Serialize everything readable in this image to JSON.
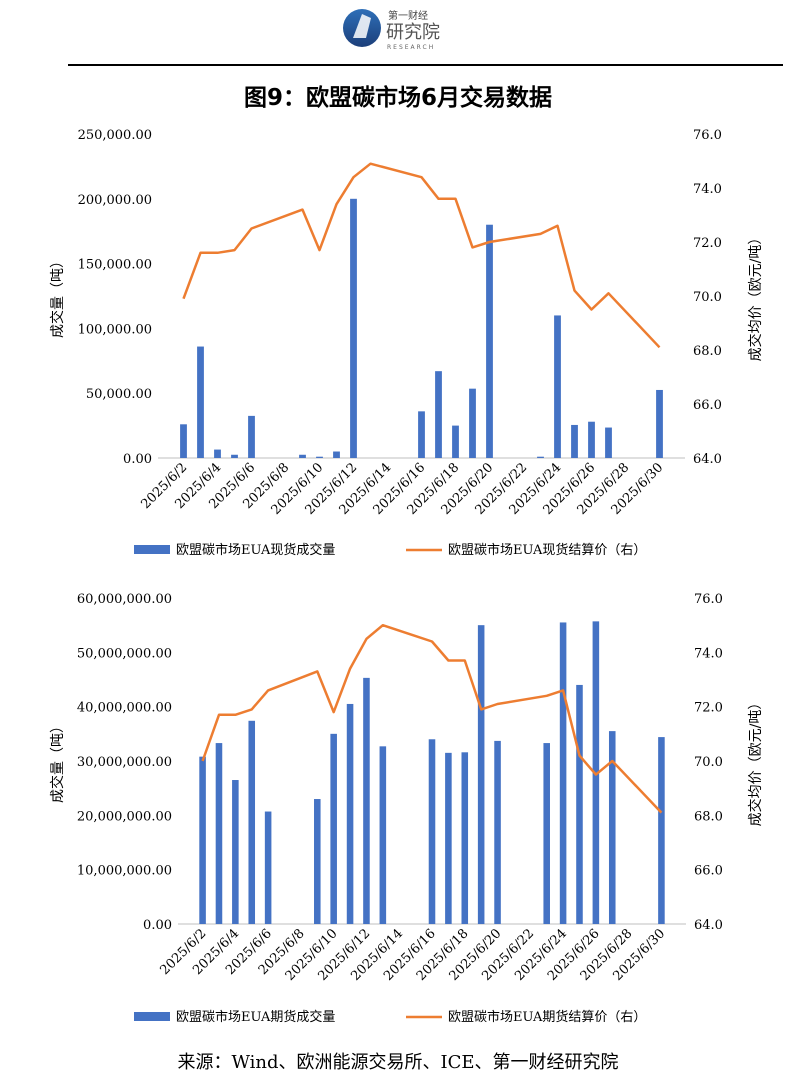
{
  "header": {
    "logo_line1": "第一财经",
    "logo_line2": "研究院",
    "logo_line3": "RESEARCH"
  },
  "title": "图9：欧盟碳市场6月交易数据",
  "source": "来源：Wind、欧洲能源交易所、ICE、第一财经研究院",
  "colors": {
    "bar": "#4472C4",
    "line": "#ED7D31"
  },
  "chart_data": [
    {
      "type": "bar+line",
      "title": "",
      "x_categories": [
        "2025/6/2",
        "2025/6/3",
        "2025/6/4",
        "2025/6/5",
        "2025/6/6",
        "2025/6/9",
        "2025/6/10",
        "2025/6/11",
        "2025/6/12",
        "2025/6/13",
        "2025/6/16",
        "2025/6/17",
        "2025/6/18",
        "2025/6/19",
        "2025/6/20",
        "2025/6/23",
        "2025/6/24",
        "2025/6/25",
        "2025/6/26",
        "2025/6/27",
        "2025/6/30"
      ],
      "x_tick_labels": [
        "2025/6/2",
        "2025/6/4",
        "2025/6/6",
        "2025/6/8",
        "2025/6/10",
        "2025/6/12",
        "2025/6/14",
        "2025/6/16",
        "2025/6/18",
        "2025/6/20",
        "2025/6/22",
        "2025/6/24",
        "2025/6/26",
        "2025/6/28",
        "2025/6/30"
      ],
      "left_axis": {
        "label": "成交量（吨）",
        "min": 0,
        "max": 250000,
        "step": 50000,
        "tick_labels": [
          "0.00",
          "50,000.00",
          "100,000.00",
          "150,000.00",
          "200,000.00",
          "250,000.00"
        ]
      },
      "right_axis": {
        "label": "成交均价（欧元/吨）",
        "min": 64,
        "max": 76,
        "step": 2,
        "tick_labels": [
          "64.0",
          "66.0",
          "68.0",
          "70.0",
          "72.0",
          "74.0",
          "76.0"
        ]
      },
      "series": [
        {
          "name": "欧盟碳市场EUA现货成交量",
          "type": "bar",
          "axis": "left",
          "points": [
            [
              "2025/6/2",
              26000
            ],
            [
              "2025/6/3",
              86000
            ],
            [
              "2025/6/4",
              6500
            ],
            [
              "2025/6/5",
              2500
            ],
            [
              "2025/6/6",
              32500
            ],
            [
              "2025/6/9",
              2500
            ],
            [
              "2025/6/10",
              1000
            ],
            [
              "2025/6/11",
              5000
            ],
            [
              "2025/6/12",
              200000
            ],
            [
              "2025/6/16",
              36000
            ],
            [
              "2025/6/17",
              67000
            ],
            [
              "2025/6/18",
              25000
            ],
            [
              "2025/6/19",
              53500
            ],
            [
              "2025/6/20",
              180000
            ],
            [
              "2025/6/23",
              1000
            ],
            [
              "2025/6/24",
              110000
            ],
            [
              "2025/6/25",
              25500
            ],
            [
              "2025/6/26",
              28000
            ],
            [
              "2025/6/27",
              23500
            ],
            [
              "2025/6/30",
              52500
            ]
          ]
        },
        {
          "name": "欧盟碳市场EUA现货结算价（右）",
          "type": "line",
          "axis": "right",
          "points": [
            [
              "2025/6/2",
              69.9
            ],
            [
              "2025/6/3",
              71.6
            ],
            [
              "2025/6/4",
              71.6
            ],
            [
              "2025/6/5",
              71.7
            ],
            [
              "2025/6/6",
              72.5
            ],
            [
              "2025/6/9",
              73.2
            ],
            [
              "2025/6/10",
              71.7
            ],
            [
              "2025/6/11",
              73.4
            ],
            [
              "2025/6/12",
              74.4
            ],
            [
              "2025/6/13",
              74.9
            ],
            [
              "2025/6/16",
              74.4
            ],
            [
              "2025/6/17",
              73.6
            ],
            [
              "2025/6/18",
              73.6
            ],
            [
              "2025/6/19",
              71.8
            ],
            [
              "2025/6/20",
              72.0
            ],
            [
              "2025/6/23",
              72.3
            ],
            [
              "2025/6/24",
              72.6
            ],
            [
              "2025/6/25",
              70.2
            ],
            [
              "2025/6/26",
              69.5
            ],
            [
              "2025/6/27",
              70.1
            ],
            [
              "2025/6/30",
              68.1
            ]
          ]
        }
      ]
    },
    {
      "type": "bar+line",
      "title": "",
      "x_categories": [
        "2025/6/2",
        "2025/6/3",
        "2025/6/4",
        "2025/6/5",
        "2025/6/6",
        "2025/6/9",
        "2025/6/10",
        "2025/6/11",
        "2025/6/12",
        "2025/6/13",
        "2025/6/16",
        "2025/6/17",
        "2025/6/18",
        "2025/6/19",
        "2025/6/20",
        "2025/6/23",
        "2025/6/24",
        "2025/6/25",
        "2025/6/26",
        "2025/6/27",
        "2025/6/30"
      ],
      "x_tick_labels": [
        "2025/6/2",
        "2025/6/4",
        "2025/6/6",
        "2025/6/8",
        "2025/6/10",
        "2025/6/12",
        "2025/6/14",
        "2025/6/16",
        "2025/6/18",
        "2025/6/20",
        "2025/6/22",
        "2025/6/24",
        "2025/6/26",
        "2025/6/28",
        "2025/6/30"
      ],
      "left_axis": {
        "label": "成交量（吨）",
        "min": 0,
        "max": 60000000,
        "step": 10000000,
        "tick_labels": [
          "0.00",
          "10,000,000.00",
          "20,000,000.00",
          "30,000,000.00",
          "40,000,000.00",
          "50,000,000.00",
          "60,000,000.00"
        ]
      },
      "right_axis": {
        "label": "成交均价（欧元/吨）",
        "min": 64,
        "max": 76,
        "step": 2,
        "tick_labels": [
          "64.0",
          "66.0",
          "68.0",
          "70.0",
          "72.0",
          "74.0",
          "76.0"
        ]
      },
      "series": [
        {
          "name": "欧盟碳市场EUA期货成交量",
          "type": "bar",
          "axis": "left",
          "points": [
            [
              "2025/6/2",
              30800000
            ],
            [
              "2025/6/3",
              33300000
            ],
            [
              "2025/6/4",
              26500000
            ],
            [
              "2025/6/5",
              37400000
            ],
            [
              "2025/6/6",
              20700000
            ],
            [
              "2025/6/9",
              23000000
            ],
            [
              "2025/6/10",
              35000000
            ],
            [
              "2025/6/11",
              40500000
            ],
            [
              "2025/6/12",
              45300000
            ],
            [
              "2025/6/13",
              32700000
            ],
            [
              "2025/6/16",
              34000000
            ],
            [
              "2025/6/17",
              31500000
            ],
            [
              "2025/6/18",
              31600000
            ],
            [
              "2025/6/19",
              55000000
            ],
            [
              "2025/6/20",
              33700000
            ],
            [
              "2025/6/23",
              33300000
            ],
            [
              "2025/6/24",
              55500000
            ],
            [
              "2025/6/25",
              44000000
            ],
            [
              "2025/6/26",
              55700000
            ],
            [
              "2025/6/27",
              35500000
            ],
            [
              "2025/6/30",
              34400000
            ]
          ]
        },
        {
          "name": "欧盟碳市场EUA期货结算价（右）",
          "type": "line",
          "axis": "right",
          "points": [
            [
              "2025/6/2",
              70.0
            ],
            [
              "2025/6/3",
              71.7
            ],
            [
              "2025/6/4",
              71.7
            ],
            [
              "2025/6/5",
              71.9
            ],
            [
              "2025/6/6",
              72.6
            ],
            [
              "2025/6/9",
              73.3
            ],
            [
              "2025/6/10",
              71.8
            ],
            [
              "2025/6/11",
              73.4
            ],
            [
              "2025/6/12",
              74.5
            ],
            [
              "2025/6/13",
              75.0
            ],
            [
              "2025/6/16",
              74.4
            ],
            [
              "2025/6/17",
              73.7
            ],
            [
              "2025/6/18",
              73.7
            ],
            [
              "2025/6/19",
              71.9
            ],
            [
              "2025/6/20",
              72.1
            ],
            [
              "2025/6/23",
              72.4
            ],
            [
              "2025/6/24",
              72.6
            ],
            [
              "2025/6/25",
              70.2
            ],
            [
              "2025/6/26",
              69.5
            ],
            [
              "2025/6/27",
              70.0
            ],
            [
              "2025/6/30",
              68.1
            ]
          ]
        }
      ]
    }
  ]
}
